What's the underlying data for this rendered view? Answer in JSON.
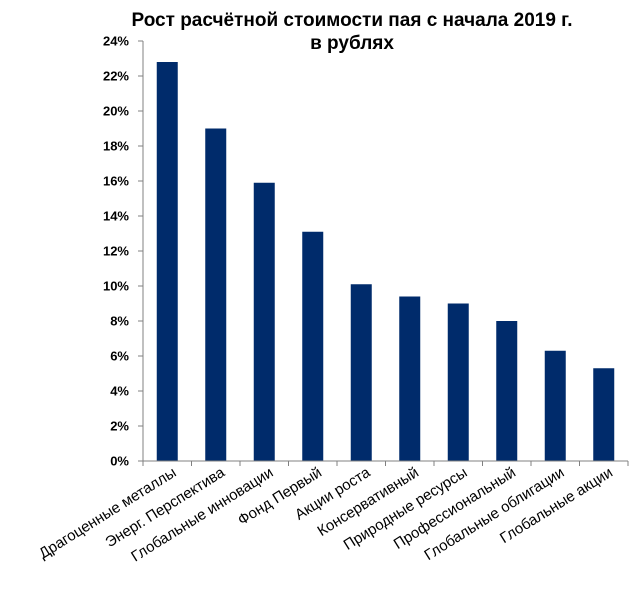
{
  "chart_data": {
    "type": "bar",
    "title": "Рост расчётной стоимости пая с начала 2019 г.",
    "subtitle": "в рублях",
    "xlabel": "",
    "ylabel": "",
    "ylim": [
      0,
      24
    ],
    "yticks": [
      0,
      2,
      4,
      6,
      8,
      10,
      12,
      14,
      16,
      18,
      20,
      22,
      24
    ],
    "ytick_labels": [
      "0%",
      "2%",
      "4%",
      "6%",
      "8%",
      "10%",
      "12%",
      "14%",
      "16%",
      "18%",
      "20%",
      "22%",
      "24%"
    ],
    "categories": [
      "Драгоценные металлы",
      "Энерг. Перспектива",
      "Глобальные инновации",
      "Фонд Первый",
      "Акции роста",
      "Консервативный",
      "Природные ресурсы",
      "Профессиональный",
      "Глобальные облигации",
      "Глобальные акции"
    ],
    "values": [
      22.8,
      19.0,
      15.9,
      13.1,
      10.1,
      9.4,
      9.0,
      8.0,
      6.3,
      5.3
    ],
    "grid": false,
    "legend": "none",
    "bar_color": "#002B6B"
  }
}
